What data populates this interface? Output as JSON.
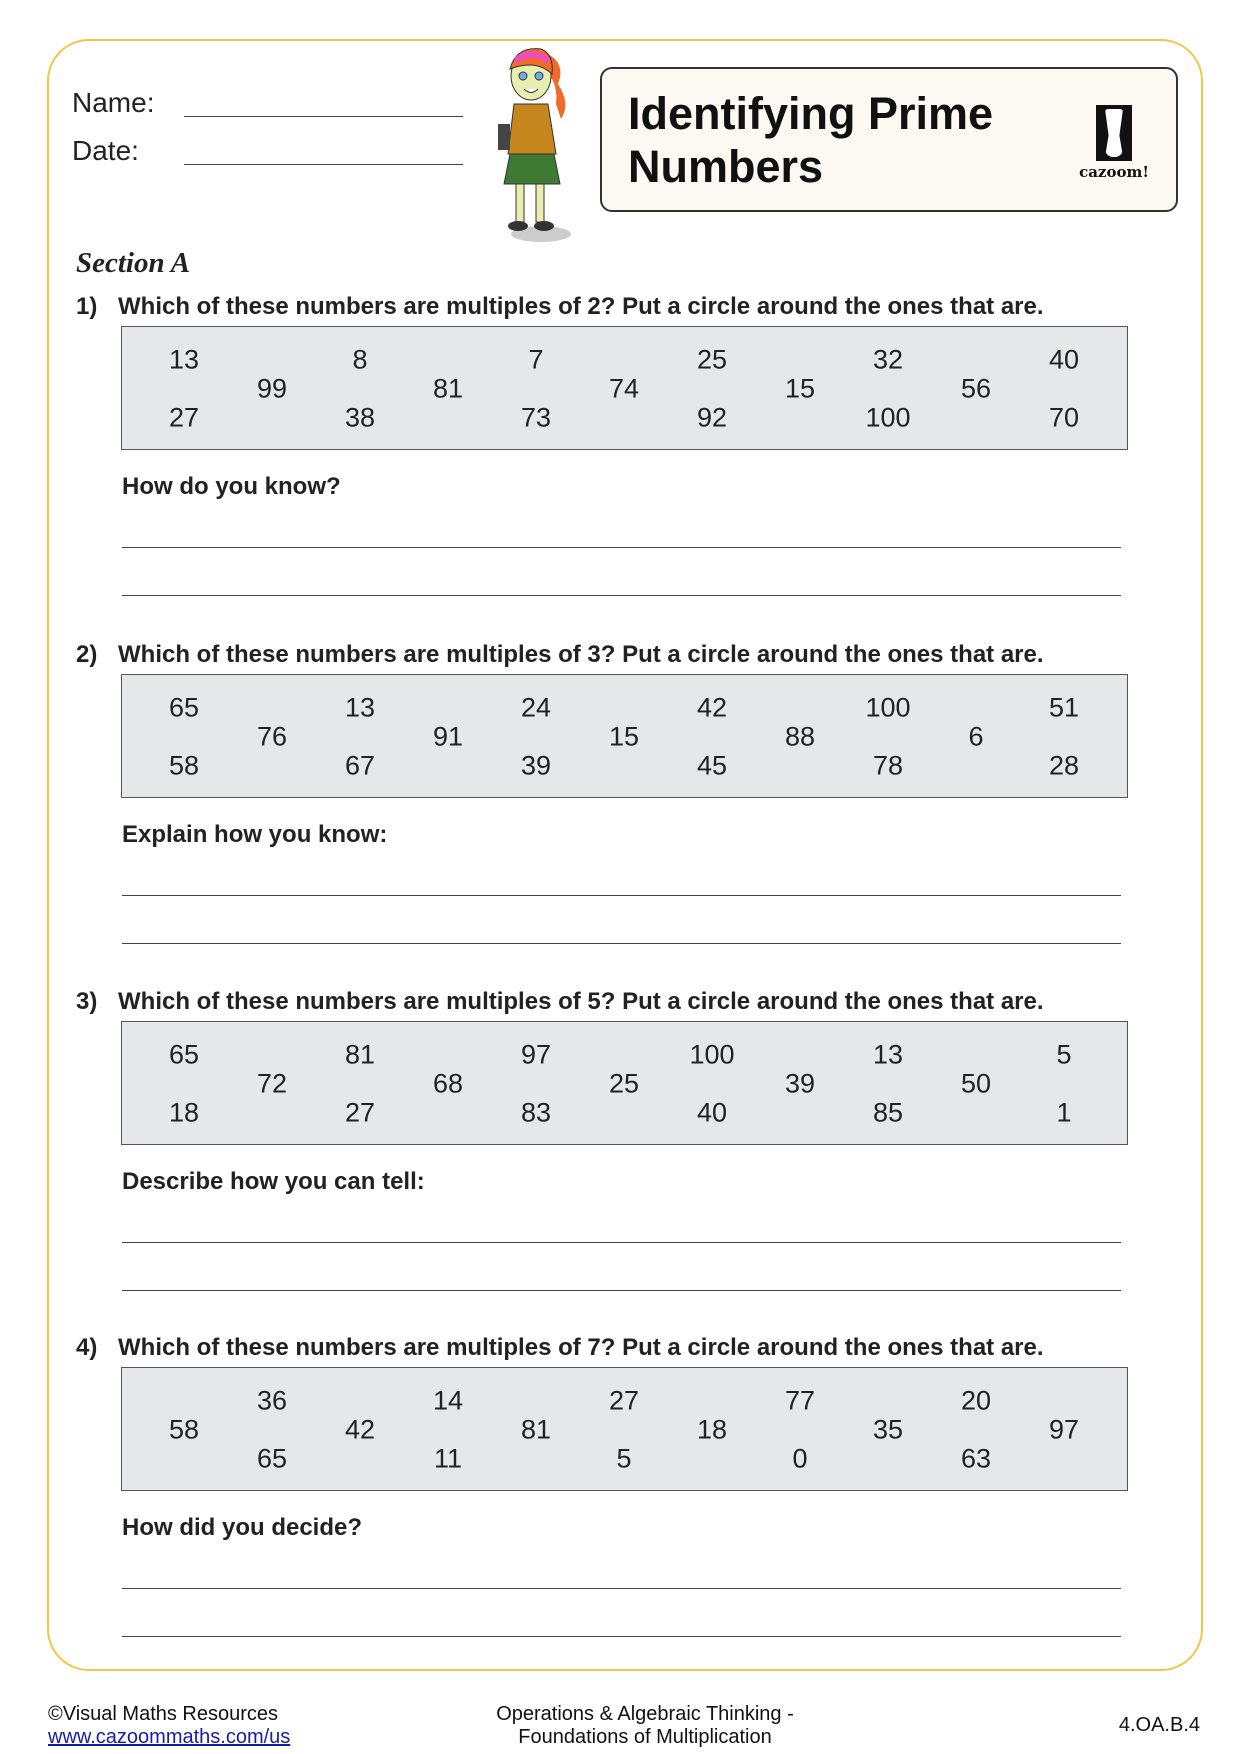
{
  "header": {
    "name_label": "Name:",
    "date_label": "Date:",
    "title_line1": "Identifying Prime",
    "title_line2": "Numbers",
    "logo_text": "cazoom!"
  },
  "section_title": "Section A",
  "questions": [
    {
      "number": "1)",
      "text": "Which of these numbers are multiples of 2?  Put a circle around the ones that are.",
      "columns": [
        [
          "13",
          "27"
        ],
        [
          "99"
        ],
        [
          "8",
          "38"
        ],
        [
          "81"
        ],
        [
          "7",
          "73"
        ],
        [
          "74"
        ],
        [
          "25",
          "92"
        ],
        [
          "15"
        ],
        [
          "32",
          "100"
        ],
        [
          "56"
        ],
        [
          "40",
          "70"
        ]
      ],
      "prompt": "How do you know?"
    },
    {
      "number": "2)",
      "text": "Which of these numbers are multiples of 3?  Put a circle around the ones that are.",
      "columns": [
        [
          "65",
          "58"
        ],
        [
          "76"
        ],
        [
          "13",
          "67"
        ],
        [
          "91"
        ],
        [
          "24",
          "39"
        ],
        [
          "15"
        ],
        [
          "42",
          "45"
        ],
        [
          "88"
        ],
        [
          "100",
          "78"
        ],
        [
          "6"
        ],
        [
          "51",
          "28"
        ]
      ],
      "prompt": "Explain how you know:"
    },
    {
      "number": "3)",
      "text": "Which of these numbers are multiples of 5?  Put a circle around the ones that are.",
      "columns": [
        [
          "65",
          "18"
        ],
        [
          "72"
        ],
        [
          "81",
          "27"
        ],
        [
          "68"
        ],
        [
          "97",
          "83"
        ],
        [
          "25"
        ],
        [
          "100",
          "40"
        ],
        [
          "39"
        ],
        [
          "13",
          "85"
        ],
        [
          "50"
        ],
        [
          "5",
          "1"
        ]
      ],
      "prompt": "Describe how you can tell:"
    },
    {
      "number": "4)",
      "text": "Which of these numbers are multiples of 7?  Put a circle around the ones that are.",
      "columns": [
        [
          "58"
        ],
        [
          "36",
          "65"
        ],
        [
          "42"
        ],
        [
          "14",
          "11"
        ],
        [
          "81"
        ],
        [
          "27",
          "5"
        ],
        [
          "18"
        ],
        [
          "77",
          "0"
        ],
        [
          "35"
        ],
        [
          "20",
          "63"
        ],
        [
          "97"
        ]
      ],
      "prompt": "How did you decide?"
    }
  ],
  "footer": {
    "copyright": "©Visual Maths Resources",
    "link": "www.cazoommaths.com/us",
    "topic_line1": "Operations & Algebraic Thinking -",
    "topic_line2": "Foundations of Multiplication",
    "standard": "4.OA.B.4"
  },
  "colors": {
    "frame": "#f3c64a",
    "number_box": "#e6e7e9",
    "title_box": "#fcf8f2",
    "link": "#1a1aa6"
  }
}
